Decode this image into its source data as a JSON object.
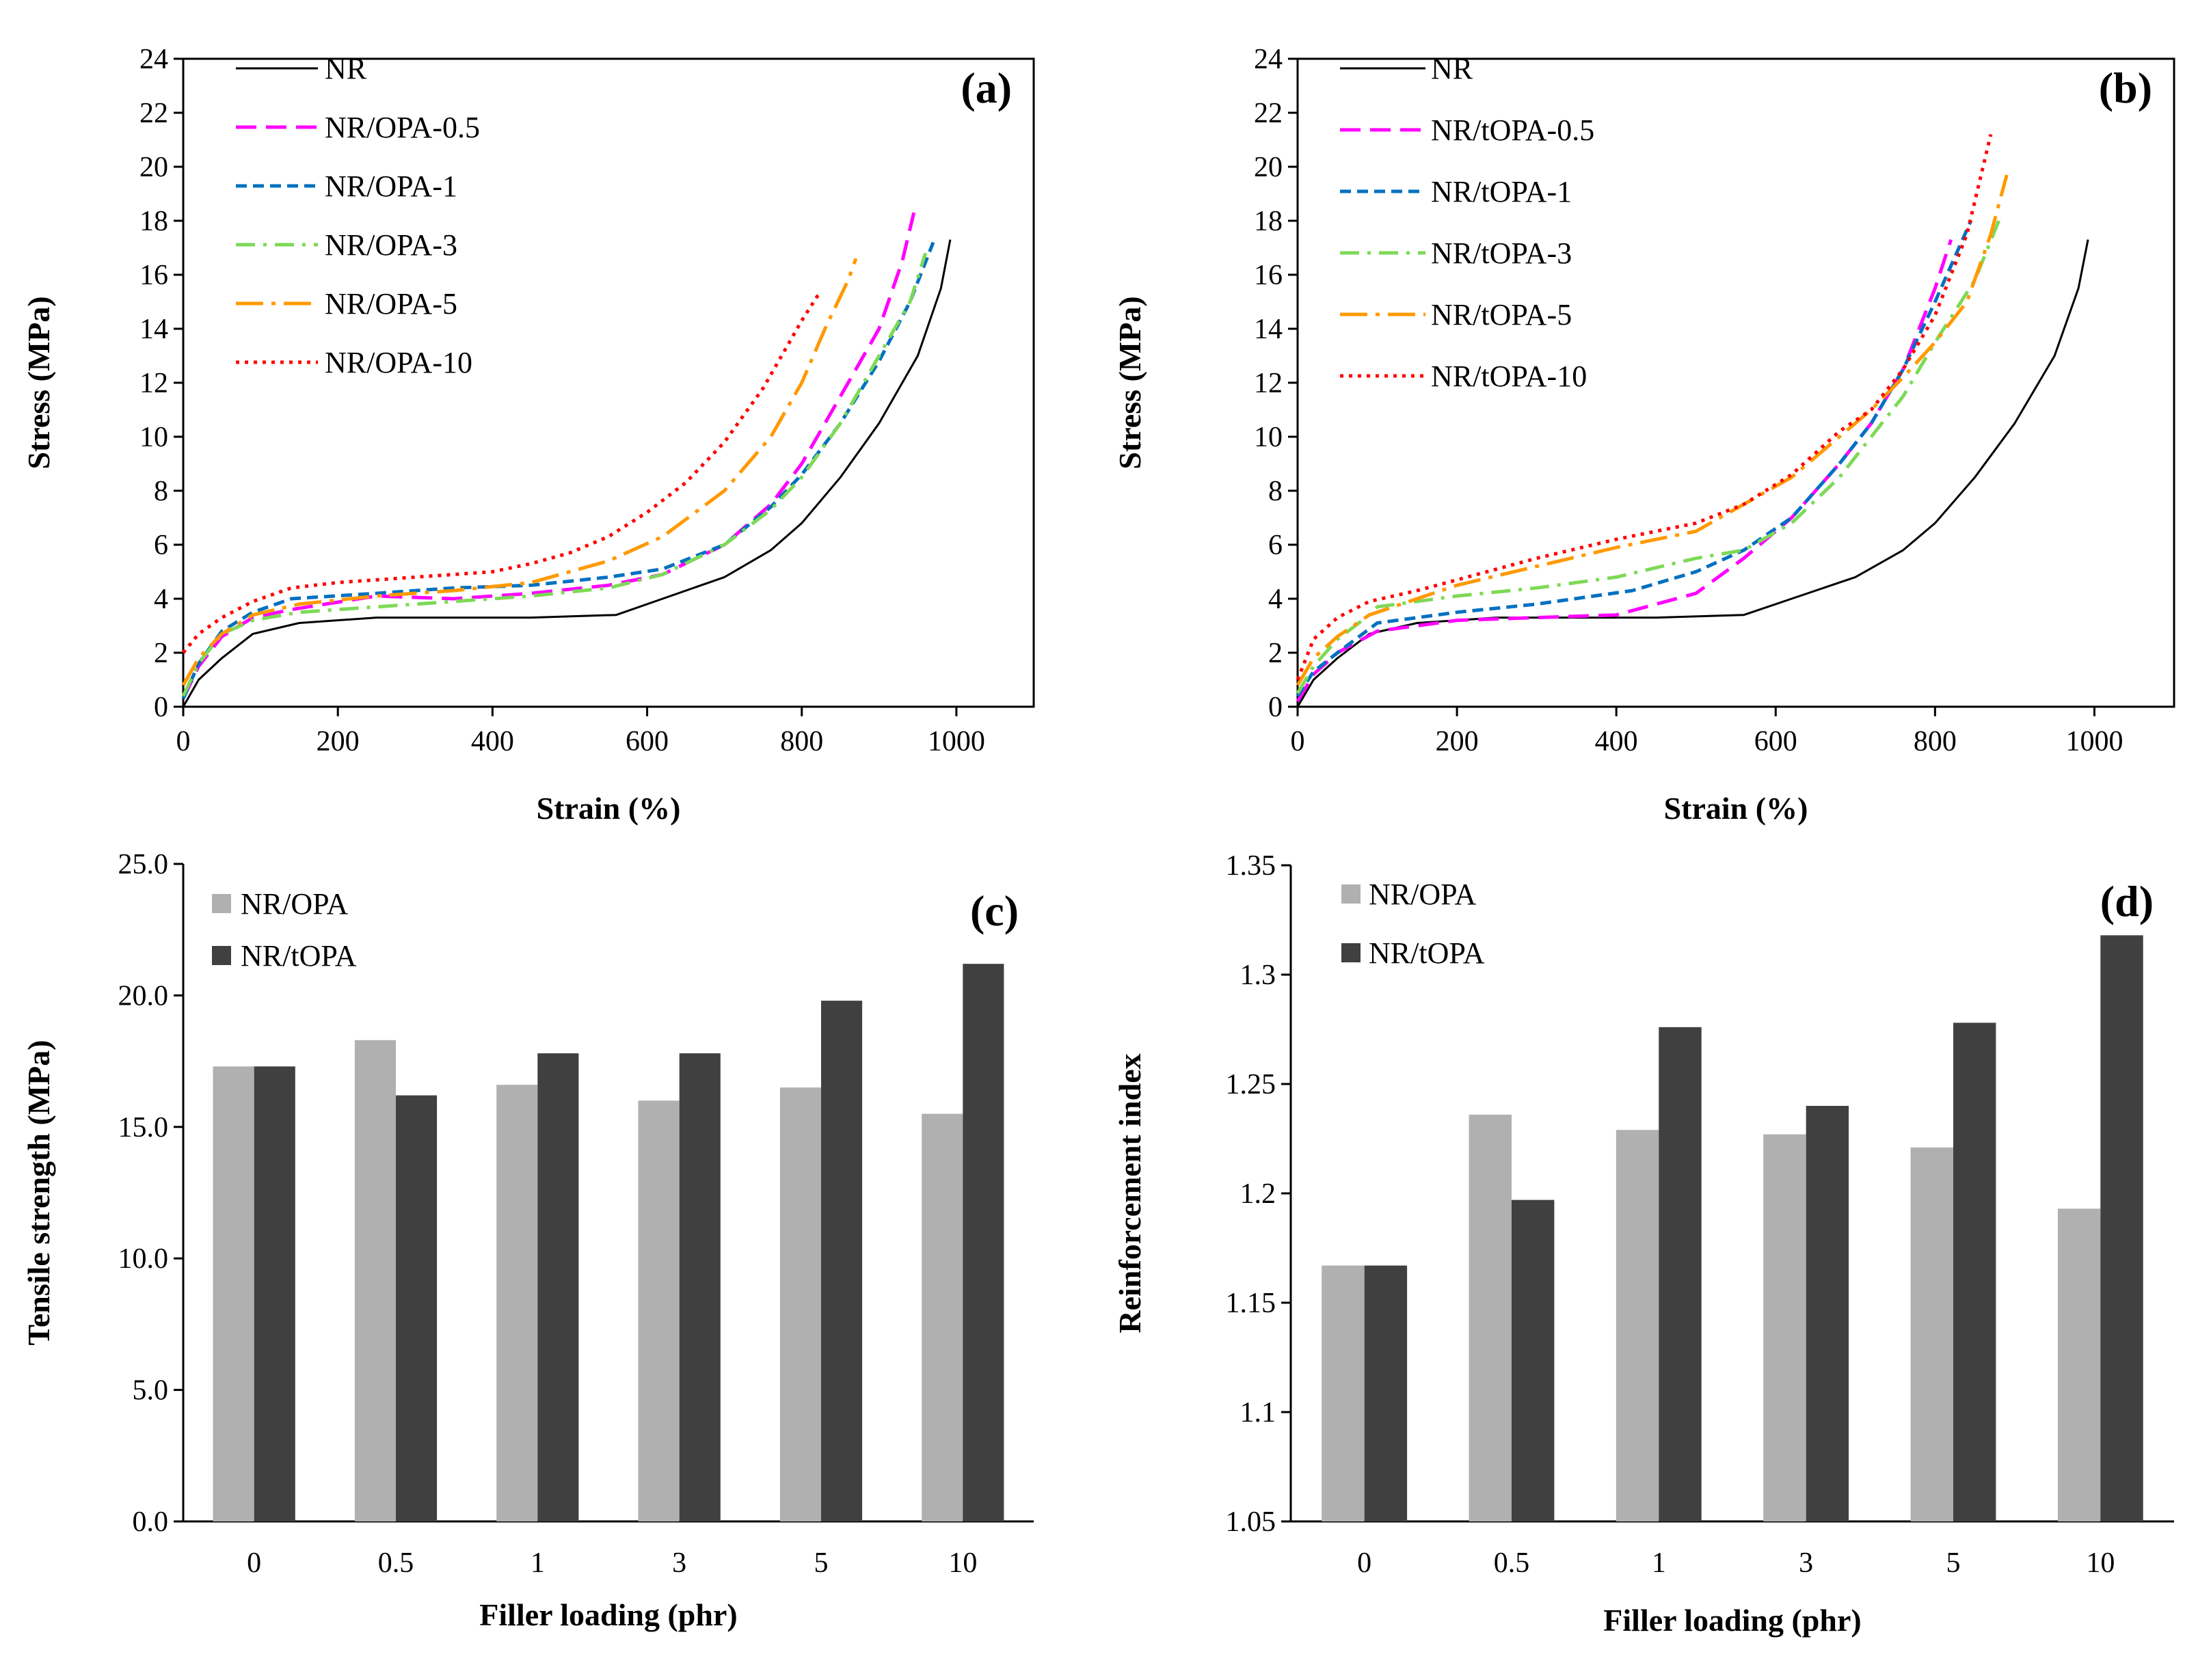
{
  "chart_data": [
    {
      "panel_label": "(a)",
      "type": "line",
      "xlabel": "Strain (%)",
      "ylabel": "Stress (MPa)",
      "xlim": [
        0,
        1100
      ],
      "ylim": [
        0,
        24
      ],
      "xticks": [
        "0",
        "200",
        "400",
        "600",
        "800",
        "1000"
      ],
      "yticks": [
        "0",
        "2",
        "4",
        "6",
        "8",
        "10",
        "12",
        "14",
        "16",
        "18",
        "20",
        "22",
        "24"
      ],
      "legend_position": "top-left",
      "series": [
        {
          "name": "NR",
          "color": "#000000",
          "dash": "solid",
          "x": [
            0,
            20,
            50,
            90,
            150,
            250,
            350,
            450,
            560,
            620,
            700,
            760,
            800,
            850,
            900,
            950,
            980,
            992
          ],
          "y": [
            0,
            1.0,
            1.8,
            2.7,
            3.1,
            3.3,
            3.3,
            3.3,
            3.4,
            4.0,
            4.8,
            5.8,
            6.8,
            8.5,
            10.5,
            13.0,
            15.5,
            17.3
          ]
        },
        {
          "name": "NR/OPA-0.5",
          "color": "#ff00ff",
          "dash": "longdash",
          "x": [
            0,
            20,
            50,
            90,
            140,
            250,
            350,
            450,
            550,
            620,
            700,
            760,
            800,
            850,
            900,
            930,
            945
          ],
          "y": [
            0.3,
            1.5,
            2.6,
            3.3,
            3.6,
            4.1,
            4.0,
            4.2,
            4.5,
            4.9,
            6.0,
            7.5,
            9.0,
            11.5,
            14.0,
            16.5,
            18.3
          ]
        },
        {
          "name": "NR/OPA-1",
          "color": "#0070c0",
          "dash": "shortdash",
          "x": [
            0,
            20,
            50,
            90,
            140,
            250,
            350,
            450,
            550,
            620,
            700,
            760,
            800,
            850,
            900,
            940,
            970
          ],
          "y": [
            0.3,
            1.6,
            2.8,
            3.5,
            4.0,
            4.2,
            4.4,
            4.5,
            4.8,
            5.1,
            6.0,
            7.4,
            8.6,
            10.5,
            12.8,
            15.0,
            17.2
          ]
        },
        {
          "name": "NR/OPA-3",
          "color": "#7ed957",
          "dash": "dashdot",
          "x": [
            0,
            20,
            50,
            90,
            150,
            250,
            350,
            450,
            550,
            620,
            700,
            760,
            800,
            850,
            900,
            940,
            960
          ],
          "y": [
            0.4,
            1.6,
            2.7,
            3.2,
            3.5,
            3.7,
            3.9,
            4.1,
            4.4,
            4.9,
            6.0,
            7.3,
            8.5,
            10.5,
            13.0,
            15.0,
            16.8
          ]
        },
        {
          "name": "NR/OPA-5",
          "color": "#ff9900",
          "dash": "longdashdot",
          "x": [
            0,
            20,
            50,
            90,
            150,
            250,
            350,
            450,
            550,
            620,
            700,
            760,
            800,
            830,
            860,
            870
          ],
          "y": [
            0.8,
            1.8,
            2.7,
            3.4,
            3.8,
            4.1,
            4.3,
            4.6,
            5.4,
            6.3,
            8.0,
            10.0,
            12.0,
            14.0,
            15.8,
            16.6
          ]
        },
        {
          "name": "NR/OPA-10",
          "color": "#ff0000",
          "dash": "dotted",
          "x": [
            0,
            20,
            50,
            90,
            140,
            200,
            250,
            300,
            350,
            400,
            450,
            500,
            550,
            600,
            650,
            700,
            750,
            800,
            820,
            825
          ],
          "y": [
            2.0,
            2.7,
            3.3,
            3.9,
            4.4,
            4.6,
            4.7,
            4.8,
            4.9,
            5.0,
            5.3,
            5.7,
            6.3,
            7.2,
            8.3,
            9.8,
            11.8,
            14.3,
            15.2,
            15.3
          ]
        }
      ]
    },
    {
      "panel_label": "(b)",
      "type": "line",
      "xlabel": "Strain (%)",
      "ylabel": "Stress (MPa)",
      "xlim": [
        0,
        1100
      ],
      "ylim": [
        0,
        24
      ],
      "xticks": [
        "0",
        "200",
        "400",
        "600",
        "800",
        "1000"
      ],
      "yticks": [
        "0",
        "2",
        "4",
        "6",
        "8",
        "10",
        "12",
        "14",
        "16",
        "18",
        "20",
        "22",
        "24"
      ],
      "legend_position": "top-left",
      "series": [
        {
          "name": "NR",
          "color": "#000000",
          "dash": "solid",
          "x": [
            0,
            20,
            50,
            90,
            150,
            250,
            350,
            450,
            560,
            620,
            700,
            760,
            800,
            850,
            900,
            950,
            980,
            992
          ],
          "y": [
            0,
            1.0,
            1.8,
            2.7,
            3.1,
            3.3,
            3.3,
            3.3,
            3.4,
            4.0,
            4.8,
            5.8,
            6.8,
            8.5,
            10.5,
            13.0,
            15.5,
            17.3
          ]
        },
        {
          "name": "NR/tOPA-0.5",
          "color": "#ff00ff",
          "dash": "longdash",
          "x": [
            0,
            20,
            50,
            100,
            200,
            300,
            400,
            500,
            560,
            620,
            680,
            720,
            760,
            800,
            820
          ],
          "y": [
            0.2,
            1.2,
            2.0,
            2.8,
            3.2,
            3.3,
            3.4,
            4.2,
            5.5,
            7.0,
            9.0,
            10.5,
            12.5,
            15.5,
            17.3
          ]
        },
        {
          "name": "NR/tOPA-1",
          "color": "#0070c0",
          "dash": "shortdash",
          "x": [
            0,
            20,
            50,
            100,
            200,
            300,
            420,
            500,
            560,
            620,
            680,
            720,
            760,
            800,
            845
          ],
          "y": [
            0.4,
            1.3,
            2.0,
            3.1,
            3.5,
            3.8,
            4.3,
            5.0,
            5.8,
            7.0,
            9.0,
            10.5,
            12.5,
            15.0,
            18.0
          ]
        },
        {
          "name": "NR/tOPA-3",
          "color": "#7ed957",
          "dash": "dashdot",
          "x": [
            0,
            20,
            50,
            90,
            100,
            200,
            300,
            400,
            500,
            560,
            620,
            680,
            720,
            760,
            800,
            850,
            880
          ],
          "y": [
            0.5,
            1.5,
            2.5,
            3.4,
            3.7,
            4.1,
            4.4,
            4.8,
            5.5,
            5.8,
            6.8,
            8.5,
            10.0,
            11.5,
            13.5,
            15.8,
            18.0
          ]
        },
        {
          "name": "NR/tOPA-5",
          "color": "#ff9900",
          "dash": "longdashdot",
          "x": [
            0,
            20,
            50,
            90,
            150,
            200,
            300,
            400,
            500,
            560,
            620,
            680,
            720,
            760,
            800,
            840,
            870,
            890
          ],
          "y": [
            0.8,
            1.8,
            2.6,
            3.4,
            4.0,
            4.5,
            5.2,
            5.9,
            6.5,
            7.5,
            8.5,
            10.0,
            11.0,
            12.2,
            13.5,
            15.0,
            17.5,
            19.7
          ]
        },
        {
          "name": "NR/tOPA-10",
          "color": "#ff0000",
          "dash": "dotted",
          "x": [
            0,
            20,
            50,
            90,
            150,
            200,
            300,
            400,
            500,
            560,
            620,
            680,
            720,
            760,
            800,
            840,
            870
          ],
          "y": [
            1.0,
            2.5,
            3.3,
            3.9,
            4.3,
            4.7,
            5.5,
            6.2,
            6.8,
            7.5,
            8.6,
            10.2,
            11.0,
            12.5,
            14.5,
            17.5,
            21.2
          ]
        }
      ]
    },
    {
      "panel_label": "(c)",
      "type": "bar",
      "xlabel": "Filler loading (phr)",
      "ylabel": "Tensile strength (MPa)",
      "categories": [
        "0",
        "0.5",
        "1",
        "3",
        "5",
        "10"
      ],
      "ylim": [
        0,
        25
      ],
      "yticks": [
        "0.0",
        "5.0",
        "10.0",
        "15.0",
        "20.0",
        "25.0"
      ],
      "legend_position": "top-left",
      "series": [
        {
          "name": "NR/OPA",
          "color": "#b0b0b0",
          "values": [
            17.3,
            18.3,
            16.6,
            16.0,
            16.5,
            15.5
          ]
        },
        {
          "name": "NR/tOPA",
          "color": "#404040",
          "values": [
            17.3,
            16.2,
            17.8,
            17.8,
            19.8,
            21.2
          ]
        }
      ]
    },
    {
      "panel_label": "(d)",
      "type": "bar",
      "xlabel": "Filler loading (phr)",
      "ylabel": "Reinforcement index",
      "categories": [
        "0",
        "0.5",
        "1",
        "3",
        "5",
        "10"
      ],
      "ylim": [
        1.05,
        1.35
      ],
      "yticks": [
        "1.05",
        "1.1",
        "1.15",
        "1.2",
        "1.25",
        "1.3",
        "1.35"
      ],
      "legend_position": "top-left",
      "series": [
        {
          "name": "NR/OPA",
          "color": "#b0b0b0",
          "values": [
            1.167,
            1.236,
            1.229,
            1.227,
            1.221,
            1.193
          ]
        },
        {
          "name": "NR/tOPA",
          "color": "#404040",
          "values": [
            1.167,
            1.197,
            1.276,
            1.24,
            1.278,
            1.318
          ]
        }
      ]
    }
  ]
}
